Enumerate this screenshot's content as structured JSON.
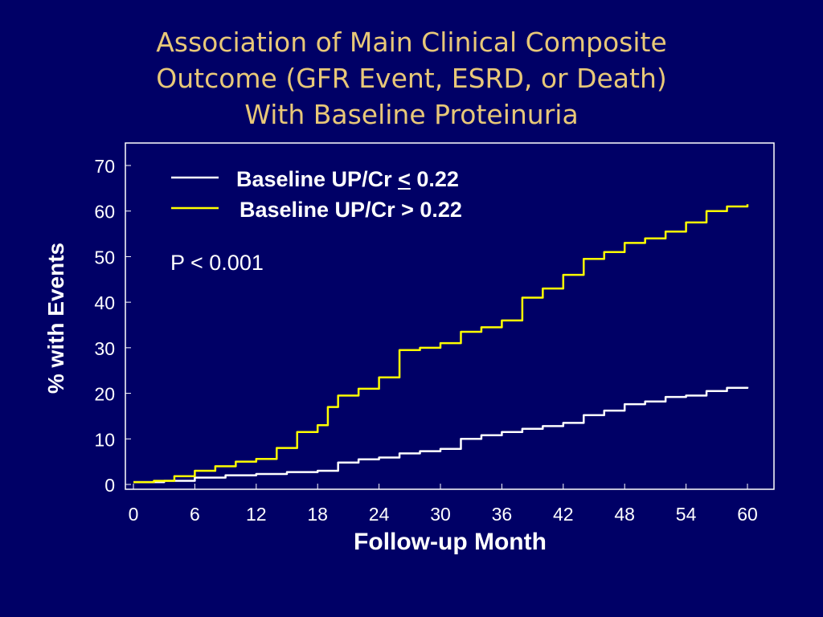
{
  "slide": {
    "title_lines": [
      "Association of Main Clinical Composite",
      "Outcome (GFR Event, ESRD, or Death)",
      "With Baseline Proteinuria"
    ]
  },
  "colors": {
    "background": "#000066",
    "title": "#E8C878",
    "series_low": "#ffffff",
    "series_high": "#ffff00"
  },
  "annotation": "P < 0.001",
  "chart_data": {
    "type": "line",
    "xlabel": "Follow-up Month",
    "ylabel": "% with Events",
    "xlim": [
      0,
      60
    ],
    "ylim": [
      0,
      70
    ],
    "xticks": [
      0,
      6,
      12,
      18,
      24,
      30,
      36,
      42,
      48,
      54,
      60
    ],
    "yticks": [
      0,
      10,
      20,
      30,
      40,
      50,
      60,
      70
    ],
    "legend_position": "top-left",
    "series": [
      {
        "name": "Baseline UP/Cr ≤ 0.22",
        "name_prefix": "Baseline UP/Cr ",
        "name_symbol": "<",
        "name_suffix": " 0.22",
        "color": "#ffffff",
        "x": [
          0,
          3,
          6,
          9,
          12,
          15,
          18,
          20,
          22,
          24,
          26,
          28,
          30,
          32,
          34,
          36,
          38,
          40,
          42,
          44,
          46,
          48,
          50,
          52,
          54,
          56,
          58,
          60
        ],
        "y": [
          0.5,
          0.8,
          1.5,
          2.0,
          2.3,
          2.7,
          3.0,
          4.8,
          5.5,
          5.9,
          6.8,
          7.3,
          7.8,
          10.0,
          10.8,
          11.5,
          12.2,
          12.8,
          13.5,
          15.2,
          16.2,
          17.6,
          18.2,
          19.2,
          19.5,
          20.5,
          21.2,
          21.4
        ]
      },
      {
        "name": "Baseline UP/Cr > 0.22",
        "name_prefix": "Baseline UP/Cr > 0.22",
        "name_symbol": "",
        "name_suffix": "",
        "color": "#ffff00",
        "x": [
          0,
          2,
          4,
          6,
          8,
          10,
          12,
          14,
          16,
          18,
          19,
          20,
          22,
          24,
          26,
          28,
          30,
          32,
          34,
          36,
          38,
          40,
          42,
          44,
          46,
          48,
          50,
          52,
          54,
          56,
          58,
          60
        ],
        "y": [
          0.5,
          0.8,
          1.8,
          3.0,
          4.0,
          5.0,
          5.6,
          8.0,
          11.5,
          13.0,
          17.0,
          19.5,
          21.0,
          23.5,
          29.5,
          30.0,
          31.0,
          33.5,
          34.5,
          36.0,
          41.0,
          43.0,
          46.0,
          49.5,
          51.0,
          53.0,
          54.0,
          55.5,
          57.5,
          60.0,
          61.0,
          61.5
        ]
      }
    ]
  }
}
